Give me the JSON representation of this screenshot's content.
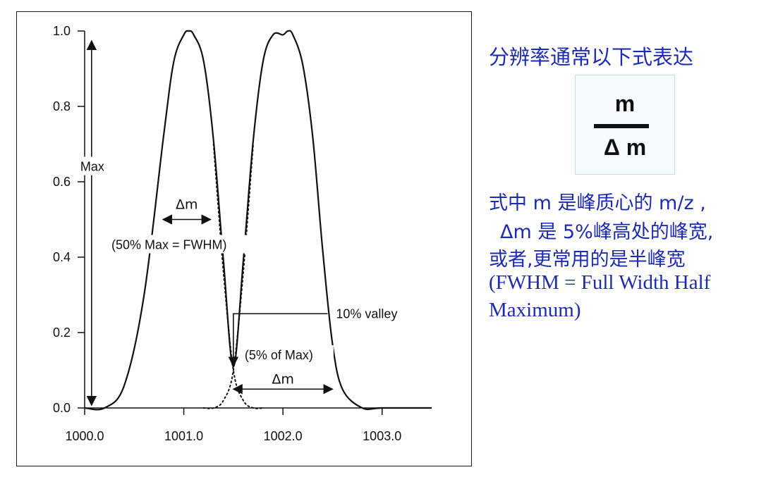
{
  "chart_data": {
    "type": "line",
    "title": "",
    "xlabel": "",
    "ylabel": "",
    "xlim": [
      1000.0,
      1003.5
    ],
    "ylim": [
      0.0,
      1.0
    ],
    "x_ticks": [
      1000.0,
      1001.0,
      1002.0,
      1003.0
    ],
    "x_tick_labels": [
      "1000.0",
      "1001.0",
      "1002.0",
      "1003.0"
    ],
    "y_ticks": [
      0.0,
      0.2,
      0.4,
      0.6,
      0.8,
      1.0
    ],
    "y_tick_labels": [
      "0.0",
      "0.2",
      "0.4",
      "0.6",
      "0.8",
      "1.0"
    ],
    "grid": false,
    "legend": "none",
    "series": [
      {
        "style": "solid",
        "x": [
          1000.0,
          1000.2,
          1000.4,
          1000.6,
          1000.8,
          1000.9,
          1001.0,
          1001.05,
          1001.1,
          1001.2,
          1001.3,
          1001.4,
          1001.5,
          1001.6,
          1001.7,
          1001.8,
          1001.9,
          1002.0,
          1002.05,
          1002.1,
          1002.2,
          1002.3,
          1002.4,
          1002.5,
          1002.6,
          1002.8,
          1003.0,
          1003.5
        ],
        "y": [
          0.0,
          0.0,
          0.06,
          0.3,
          0.73,
          0.92,
          0.99,
          1.0,
          0.99,
          0.92,
          0.71,
          0.39,
          0.11,
          0.39,
          0.71,
          0.92,
          0.99,
          0.99,
          1.0,
          0.99,
          0.91,
          0.72,
          0.42,
          0.17,
          0.05,
          0.0,
          0.0,
          0.0
        ]
      },
      {
        "style": "dotted",
        "x": [
          1001.3,
          1001.4,
          1001.5,
          1001.6,
          1001.7,
          1001.8
        ],
        "y": [
          0.7,
          0.36,
          0.1,
          0.02,
          0.0,
          0.0
        ]
      },
      {
        "style": "dotted",
        "x": [
          1001.2,
          1001.3,
          1001.4,
          1001.5,
          1001.6,
          1001.7
        ],
        "y": [
          0.0,
          0.0,
          0.02,
          0.1,
          0.36,
          0.7
        ]
      }
    ],
    "annotations": {
      "max_label": "Max",
      "fwhm_delta": "Δm",
      "fwhm_label": "(50% Max = FWHM)",
      "valley_label": "10% valley",
      "valley_sub": "(5% of Max)",
      "valley_delta": "Δm"
    },
    "annotation_geometry": {
      "max_arrow_x": 1000.07,
      "fwhm_x": [
        1000.79,
        1001.27
      ],
      "fwhm_y": 0.5,
      "valley_x": 1001.5,
      "valley_y": 0.1,
      "valley_callout_y": 0.25,
      "valley_callout_x_end": 1002.45,
      "valley_delta_x": [
        1001.5,
        1002.5
      ],
      "valley_delta_y": 0.05
    }
  },
  "side_panel": {
    "heading": "分辨率通常以下式表达",
    "formula_numerator": "m",
    "formula_denominator": "Δ m",
    "line1": "式中 m 是峰质心的 m/z ,",
    "line2": "Δm 是 5%峰高处的峰宽,",
    "line3": "或者,更常用的是半峰宽",
    "line4": "(FWHM = Full Width Half",
    "line5": "Maximum)"
  },
  "colors": {
    "side_text": "#1d2bb0",
    "curve": "#111111",
    "formula_box_border": "#bfe3ea"
  }
}
